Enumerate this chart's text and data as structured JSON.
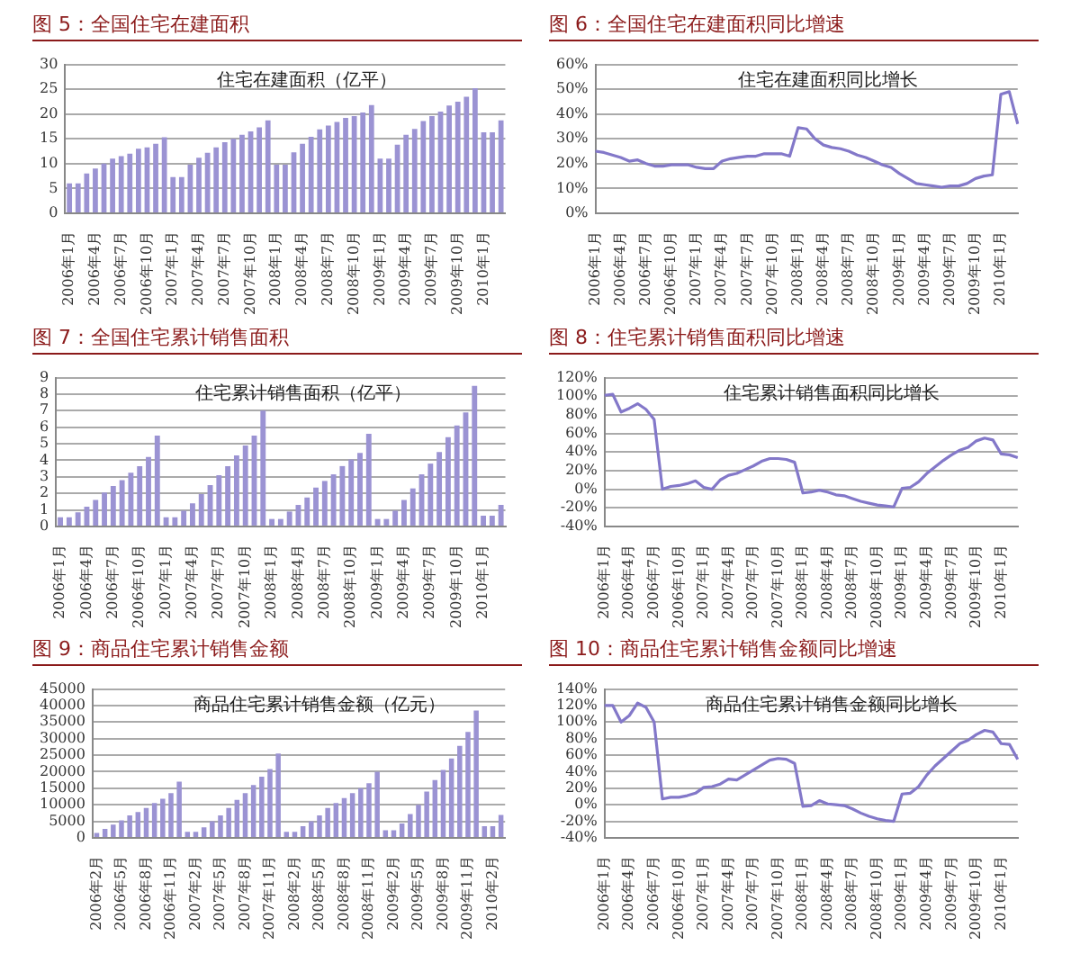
{
  "chart_data": [
    {
      "type": "bar",
      "title": "图 5：全国住宅在建面积",
      "annotations": [
        "住宅在建面积（亿平）"
      ],
      "color": "#9b93d3",
      "grid": "y",
      "ylim": [
        0,
        30
      ],
      "yticks": [
        0,
        5,
        10,
        15,
        20,
        25,
        30
      ],
      "categories": [
        "2006年1月",
        null,
        null,
        "2006年4月",
        null,
        null,
        "2006年7月",
        null,
        null,
        "2006年10月",
        null,
        null,
        "2007年1月",
        null,
        null,
        "2007年4月",
        null,
        null,
        "2007年7月",
        null,
        null,
        "2007年10月",
        null,
        null,
        "2008年1月",
        null,
        null,
        "2008年4月",
        null,
        null,
        "2008年7月",
        null,
        null,
        "2008年10月",
        null,
        null,
        "2009年1月",
        null,
        null,
        "2009年4月",
        null,
        null,
        "2009年7月",
        null,
        null,
        "2009年10月",
        null,
        null,
        "2010年1月",
        null,
        null
      ],
      "values": [
        6,
        6,
        8,
        9,
        10,
        11,
        11.5,
        12,
        13,
        13.3,
        14,
        15.3,
        7.3,
        7.3,
        9.8,
        11.2,
        12.2,
        13.3,
        14.3,
        15,
        15.8,
        16.5,
        17.3,
        18.7,
        9.8,
        9.8,
        12.3,
        14,
        15.4,
        16.9,
        17.7,
        18.4,
        19.2,
        19.6,
        20.3,
        21.8,
        11,
        11,
        13.8,
        15.8,
        17,
        18.6,
        19.6,
        20.5,
        21.7,
        22.5,
        23.5,
        25.2,
        16.3,
        16.3,
        18.7
      ]
    },
    {
      "type": "line",
      "title": "图 6：全国住宅在建面积同比增速",
      "annotations": [
        "住宅在建面积同比增长"
      ],
      "color": "#8378c9",
      "grid": "y",
      "ylim": [
        0,
        60
      ],
      "yticks": [
        {
          "value": 0,
          "label": "0%"
        },
        {
          "value": 10,
          "label": "10%"
        },
        {
          "value": 20,
          "label": "20%"
        },
        {
          "value": 30,
          "label": "30%"
        },
        {
          "value": 40,
          "label": "40%"
        },
        {
          "value": 50,
          "label": "50%"
        },
        {
          "value": 60,
          "label": "60%"
        }
      ],
      "categories": [
        "2006年1月",
        null,
        null,
        "2006年4月",
        null,
        null,
        "2006年7月",
        null,
        null,
        "2006年10月",
        null,
        null,
        "2007年1月",
        null,
        null,
        "2007年4月",
        null,
        null,
        "2007年7月",
        null,
        null,
        "2007年10月",
        null,
        null,
        "2008年1月",
        null,
        null,
        "2008年4月",
        null,
        null,
        "2008年7月",
        null,
        null,
        "2008年10月",
        null,
        null,
        "2009年1月",
        null,
        null,
        "2009年4月",
        null,
        null,
        "2009年7月",
        null,
        null,
        "2009年10月",
        null,
        null,
        "2010年1月",
        null,
        null
      ],
      "values": [
        25,
        24.5,
        23.5,
        22.5,
        21,
        21.5,
        20,
        19,
        19,
        19.5,
        19.5,
        19.5,
        18.5,
        18,
        18,
        21,
        22,
        22.5,
        23,
        23,
        24,
        24,
        24,
        23,
        34.5,
        34,
        30,
        27.5,
        26.5,
        26,
        25,
        23.5,
        22.5,
        21,
        19.5,
        18.5,
        16,
        14,
        12,
        11.5,
        11,
        10.5,
        11,
        11,
        12,
        14,
        15,
        15.5,
        48,
        49,
        36
      ]
    },
    {
      "type": "bar",
      "title": "图 7：全国住宅累计销售面积",
      "annotations": [
        "住宅累计销售面积（亿平）"
      ],
      "color": "#9b93d3",
      "grid": "y",
      "ylim": [
        0,
        9
      ],
      "yticks": [
        0,
        1,
        2,
        3,
        4,
        5,
        6,
        7,
        8,
        9
      ],
      "categories": [
        "2006年1月",
        null,
        null,
        "2006年4月",
        null,
        null,
        "2006年7月",
        null,
        null,
        "2006年10月",
        null,
        null,
        "2007年1月",
        null,
        null,
        "2007年4月",
        null,
        null,
        "2007年7月",
        null,
        null,
        "2007年10月",
        null,
        null,
        "2008年1月",
        null,
        null,
        "2008年4月",
        null,
        null,
        "2008年7月",
        null,
        null,
        "2008年10月",
        null,
        null,
        "2009年1月",
        null,
        null,
        "2009年4月",
        null,
        null,
        "2009年7月",
        null,
        null,
        "2009年10月",
        null,
        null,
        "2010年1月",
        null,
        null
      ],
      "values": [
        0.55,
        0.55,
        0.85,
        1.2,
        1.6,
        2.05,
        2.45,
        2.8,
        3.25,
        3.65,
        4.2,
        5.5,
        0.55,
        0.55,
        0.95,
        1.4,
        1.95,
        2.5,
        3.1,
        3.65,
        4.3,
        4.9,
        5.5,
        7,
        0.45,
        0.45,
        0.9,
        1.3,
        1.75,
        2.35,
        2.75,
        3.15,
        3.65,
        4.05,
        4.45,
        5.6,
        0.45,
        0.45,
        0.95,
        1.6,
        2.3,
        3.15,
        3.8,
        4.5,
        5.4,
        6.1,
        6.9,
        8.5,
        0.65,
        0.65,
        1.3
      ]
    },
    {
      "type": "line",
      "title": "图 8：住宅累计销售面积同比增速",
      "annotations": [
        "住宅累计销售面积同比增长"
      ],
      "color": "#8378c9",
      "grid": "y",
      "ylim": [
        -40,
        120
      ],
      "yticks": [
        {
          "value": -40,
          "label": "-40%"
        },
        {
          "value": -20,
          "label": "-20%"
        },
        {
          "value": 0,
          "label": "0%"
        },
        {
          "value": 20,
          "label": "20%"
        },
        {
          "value": 40,
          "label": "40%"
        },
        {
          "value": 60,
          "label": "60%"
        },
        {
          "value": 80,
          "label": "80%"
        },
        {
          "value": 100,
          "label": "100%"
        },
        {
          "value": 120,
          "label": "120%"
        }
      ],
      "categories": [
        "2006年1月",
        null,
        null,
        "2006年4月",
        null,
        null,
        "2006年7月",
        null,
        null,
        "2006年10月",
        null,
        null,
        "2007年1月",
        null,
        null,
        "2007年4月",
        null,
        null,
        "2007年7月",
        null,
        null,
        "2007年10月",
        null,
        null,
        "2008年1月",
        null,
        null,
        "2008年4月",
        null,
        null,
        "2008年7月",
        null,
        null,
        "2008年10月",
        null,
        null,
        "2009年1月",
        null,
        null,
        "2009年4月",
        null,
        null,
        "2009年7月",
        null,
        null,
        "2009年10月",
        null,
        null,
        "2010年1月",
        null,
        null
      ],
      "values": [
        101,
        102,
        83,
        87,
        92,
        86,
        75,
        0,
        3,
        4,
        6,
        9,
        2,
        0,
        10,
        15,
        17,
        21,
        25,
        30,
        33,
        33,
        32,
        29,
        -4,
        -3,
        -1,
        -3,
        -6,
        -7,
        -10,
        -13,
        -15,
        -17,
        -18,
        -19,
        1,
        2,
        8,
        17,
        24,
        31,
        37,
        42,
        45,
        52,
        55,
        53,
        38,
        37,
        34
      ]
    },
    {
      "type": "bar",
      "title": "图 9：商品住宅累计销售金额",
      "annotations": [
        "商品住宅累计销售金额（亿元）"
      ],
      "color": "#9b93d3",
      "grid": "y",
      "ylim": [
        0,
        45000
      ],
      "yticks": [
        0,
        5000,
        10000,
        15000,
        20000,
        25000,
        30000,
        35000,
        40000,
        45000
      ],
      "categories": [
        "2006年2月",
        null,
        null,
        "2006年5月",
        null,
        null,
        "2006年8月",
        null,
        null,
        "2006年11月",
        null,
        null,
        "2007年2月",
        null,
        null,
        "2007年5月",
        null,
        null,
        "2007年8月",
        null,
        null,
        "2007年11月",
        null,
        null,
        "2008年2月",
        null,
        null,
        "2008年5月",
        null,
        null,
        "2008年8月",
        null,
        null,
        "2008年11月",
        null,
        null,
        "2009年2月",
        null,
        null,
        "2009年5月",
        null,
        null,
        "2009年8月",
        null,
        null,
        "2009年11月",
        null,
        null,
        "2010年2月",
        null
      ],
      "values": [
        1500,
        2700,
        4000,
        5300,
        6800,
        7800,
        9000,
        10500,
        11800,
        13500,
        17000,
        1800,
        1800,
        3200,
        5000,
        6800,
        9000,
        11500,
        13500,
        16000,
        18500,
        20800,
        25500,
        1800,
        1800,
        3500,
        5000,
        6800,
        9000,
        10500,
        12000,
        13500,
        15000,
        16500,
        20000,
        2300,
        2300,
        4300,
        7200,
        10000,
        14000,
        17500,
        20500,
        24000,
        27800,
        32000,
        38500,
        3500,
        3500,
        6900
      ]
    },
    {
      "type": "line",
      "title": "图 10：商品住宅累计销售金额同比增速",
      "annotations": [
        "商品住宅累计销售金额同比增长"
      ],
      "color": "#8378c9",
      "grid": "y",
      "ylim": [
        -40,
        140
      ],
      "yticks": [
        {
          "value": -40,
          "label": "-40%"
        },
        {
          "value": -20,
          "label": "-20%"
        },
        {
          "value": 0,
          "label": "0%"
        },
        {
          "value": 20,
          "label": "20%"
        },
        {
          "value": 40,
          "label": "40%"
        },
        {
          "value": 60,
          "label": "60%"
        },
        {
          "value": 80,
          "label": "80%"
        },
        {
          "value": 100,
          "label": "100%"
        },
        {
          "value": 120,
          "label": "120%"
        },
        {
          "value": 140,
          "label": "140%"
        }
      ],
      "categories": [
        "2006年1月",
        null,
        null,
        "2006年4月",
        null,
        null,
        "2006年7月",
        null,
        null,
        "2006年10月",
        null,
        null,
        "2007年1月",
        null,
        null,
        "2007年4月",
        null,
        null,
        "2007年7月",
        null,
        null,
        "2007年10月",
        null,
        null,
        "2008年1月",
        null,
        null,
        "2008年4月",
        null,
        null,
        "2008年7月",
        null,
        null,
        "2008年10月",
        null,
        null,
        "2009年1月",
        null,
        null,
        "2009年4月",
        null,
        null,
        "2009年7月",
        null,
        null,
        "2009年10月",
        null,
        null,
        "2010年1月",
        null,
        null
      ],
      "values": [
        120,
        120,
        100,
        108,
        123,
        118,
        100,
        7,
        9,
        9,
        11,
        14,
        21,
        22,
        25,
        31,
        30,
        36,
        42,
        48,
        54,
        56,
        55,
        50,
        -2,
        -1,
        5,
        1,
        0,
        -1,
        -5,
        -10,
        -14,
        -17,
        -19,
        -20,
        13,
        14,
        22,
        36,
        47,
        56,
        65,
        74,
        78,
        85,
        90,
        88,
        74,
        73,
        55
      ]
    }
  ]
}
